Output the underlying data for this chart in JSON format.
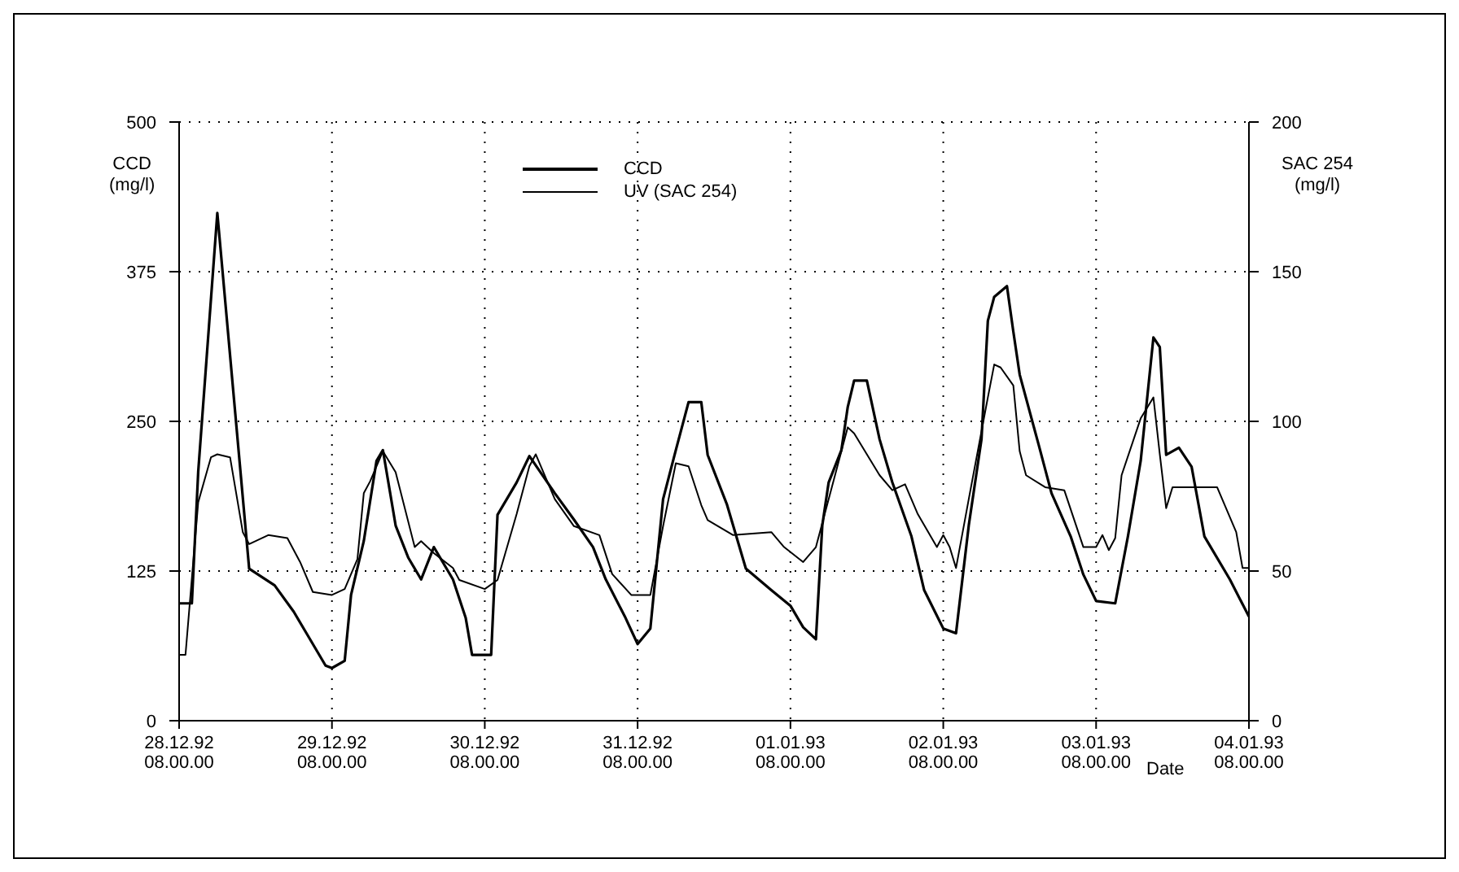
{
  "chart_data": {
    "type": "line",
    "xlabel": "Date",
    "ylabel": "CCD\n(mg/l)",
    "y2label": "SAC 254\n(mg/l)",
    "xlim": [
      "1992-12-28T08:00",
      "1993-01-04T08:00"
    ],
    "xticks": [
      {
        "value": "1992-12-28T08:00",
        "label": "28.12.92\n08.00.00"
      },
      {
        "value": "1992-12-29T08:00",
        "label": "29.12.92\n08.00.00"
      },
      {
        "value": "1992-12-30T08:00",
        "label": "30.12.92\n08.00.00"
      },
      {
        "value": "1992-12-31T08:00",
        "label": "31.12.92\n08.00.00"
      },
      {
        "value": "1993-01-01T08:00",
        "label": "01.01.93\n08.00.00"
      },
      {
        "value": "1993-01-02T08:00",
        "label": "02.01.93\n08.00.00"
      },
      {
        "value": "1993-01-03T08:00",
        "label": "03.01.93\n08.00.00"
      },
      {
        "value": "1993-01-04T08:00",
        "label": "04.01.93\n08.00.00"
      }
    ],
    "ylim": [
      0,
      500
    ],
    "yticks": [
      0,
      125,
      250,
      375,
      500
    ],
    "y2lim": [
      0,
      200
    ],
    "y2ticks": [
      0,
      50,
      100,
      150,
      200
    ],
    "grid": true,
    "legend": "top",
    "marker": "none",
    "series": [
      {
        "name": "CCD",
        "color": "#000000",
        "x": [
          "1992-12-28T08:00",
          "1992-12-28T10:00",
          "1992-12-28T11:00",
          "1992-12-28T14:00",
          "1992-12-28T19:00",
          "1992-12-28T23:00",
          "1992-12-29T02:00",
          "1992-12-29T04:00",
          "1992-12-29T07:00",
          "1992-12-29T08:00",
          "1992-12-29T10:00",
          "1992-12-29T11:00",
          "1992-12-29T13:00",
          "1992-12-29T15:00",
          "1992-12-29T16:00",
          "1992-12-29T18:00",
          "1992-12-29T20:00",
          "1992-12-29T22:00",
          "1992-12-30T00:00",
          "1992-12-30T03:00",
          "1992-12-30T05:00",
          "1992-12-30T06:00",
          "1992-12-30T09:00",
          "1992-12-30T10:00",
          "1992-12-30T13:00",
          "1992-12-30T15:00",
          "1992-12-30T19:00",
          "1992-12-30T22:00",
          "1992-12-31T01:00",
          "1992-12-31T03:00",
          "1992-12-31T06:00",
          "1992-12-31T08:00",
          "1992-12-31T10:00",
          "1992-12-31T12:00",
          "1992-12-31T14:00",
          "1992-12-31T16:00",
          "1992-12-31T18:00",
          "1992-12-31T19:00",
          "1992-12-31T22:00",
          "1993-01-01T01:00",
          "1993-01-01T05:00",
          "1993-01-01T08:00",
          "1993-01-01T10:00",
          "1993-01-01T12:00",
          "1993-01-01T13:00",
          "1993-01-01T14:00",
          "1993-01-01T16:00",
          "1993-01-01T17:00",
          "1993-01-01T18:00",
          "1993-01-01T20:00",
          "1993-01-01T22:00",
          "1993-01-02T00:00",
          "1993-01-02T03:00",
          "1993-01-02T05:00",
          "1993-01-02T08:00",
          "1993-01-02T10:00",
          "1993-01-02T11:00",
          "1993-01-02T12:00",
          "1993-01-02T14:00",
          "1993-01-02T15:00",
          "1993-01-02T16:00",
          "1993-01-02T18:00",
          "1993-01-02T19:00",
          "1993-01-02T20:00",
          "1993-01-02T23:00",
          "1993-01-03T01:00",
          "1993-01-03T04:00",
          "1993-01-03T06:00",
          "1993-01-03T08:00",
          "1993-01-03T11:00",
          "1993-01-03T13:00",
          "1993-01-03T15:00",
          "1993-01-03T17:00",
          "1993-01-03T18:00",
          "1993-01-03T19:00",
          "1993-01-03T21:00",
          "1993-01-03T23:00",
          "1993-01-04T01:00",
          "1993-01-04T05:00",
          "1993-01-04T08:00"
        ],
        "values": [
          98,
          98,
          208,
          424,
          127,
          113,
          91,
          73,
          46,
          44,
          50,
          105,
          150,
          217,
          226,
          163,
          136,
          118,
          145,
          118,
          86,
          55,
          55,
          172,
          199,
          221,
          190,
          168,
          145,
          118,
          87,
          64,
          77,
          185,
          226,
          266,
          266,
          222,
          181,
          127,
          109,
          96,
          78,
          68,
          163,
          199,
          226,
          262,
          284,
          284,
          235,
          199,
          154,
          109,
          77,
          73,
          118,
          163,
          235,
          334,
          354,
          363,
          325,
          289,
          230,
          190,
          154,
          122,
          100,
          98,
          154,
          217,
          320,
          312,
          222,
          228,
          212,
          154,
          118,
          87
        ]
      },
      {
        "name": "UV (SAC 254)",
        "color": "#000000",
        "axis": "y2",
        "x": [
          "1992-12-28T08:00",
          "1992-12-28T09:00",
          "1992-12-28T11:00",
          "1992-12-28T13:00",
          "1992-12-28T14:00",
          "1992-12-28T16:00",
          "1992-12-28T18:00",
          "1992-12-28T19:00",
          "1992-12-28T22:00",
          "1992-12-29T01:00",
          "1992-12-29T03:00",
          "1992-12-29T05:00",
          "1992-12-29T08:00",
          "1992-12-29T10:00",
          "1992-12-29T12:00",
          "1992-12-29T13:00",
          "1992-12-29T14:00",
          "1992-12-29T16:00",
          "1992-12-29T18:00",
          "1992-12-29T21:00",
          "1992-12-29T22:00",
          "1992-12-30T00:00",
          "1992-12-30T03:00",
          "1992-12-30T04:00",
          "1992-12-30T08:00",
          "1992-12-30T10:00",
          "1992-12-30T13:00",
          "1992-12-30T15:00",
          "1992-12-30T16:00",
          "1992-12-30T19:00",
          "1992-12-30T22:00",
          "1992-12-31T02:00",
          "1992-12-31T04:00",
          "1992-12-31T07:00",
          "1992-12-31T10:00",
          "1992-12-31T12:00",
          "1992-12-31T14:00",
          "1992-12-31T16:00",
          "1992-12-31T18:00",
          "1992-12-31T19:00",
          "1992-12-31T23:00",
          "1993-01-01T05:00",
          "1993-01-01T07:00",
          "1993-01-01T10:00",
          "1993-01-01T12:00",
          "1993-01-01T15:00",
          "1993-01-01T17:00",
          "1993-01-01T18:00",
          "1993-01-01T22:00",
          "1993-01-02T00:00",
          "1993-01-02T02:00",
          "1993-01-02T04:00",
          "1993-01-02T07:00",
          "1993-01-02T08:00",
          "1993-01-02T09:00",
          "1993-01-02T10:00",
          "1993-01-02T12:00",
          "1993-01-02T15:00",
          "1993-01-02T16:00",
          "1993-01-02T17:00",
          "1993-01-02T19:00",
          "1993-01-02T20:00",
          "1993-01-02T21:00",
          "1993-01-03T00:00",
          "1993-01-03T03:00",
          "1993-01-03T06:00",
          "1993-01-03T08:00",
          "1993-01-03T09:00",
          "1993-01-03T10:00",
          "1993-01-03T11:00",
          "1993-01-03T12:00",
          "1993-01-03T15:00",
          "1993-01-03T17:00",
          "1993-01-03T18:00",
          "1993-01-03T19:00",
          "1993-01-03T20:00",
          "1993-01-04T03:00",
          "1993-01-04T06:00",
          "1993-01-04T07:00",
          "1993-01-04T08:00"
        ],
        "values": [
          22,
          22,
          73,
          88,
          89,
          88,
          63,
          59,
          62,
          61,
          53,
          43,
          42,
          44,
          54,
          76,
          80,
          90,
          83,
          58,
          60,
          56,
          51,
          47,
          44,
          47,
          69,
          85,
          89,
          74,
          65,
          62,
          49,
          42,
          42,
          65,
          86,
          85,
          72,
          67,
          62,
          63,
          58,
          53,
          58,
          82,
          98,
          96,
          82,
          77,
          79,
          69,
          58,
          62,
          58,
          51,
          74,
          108,
          119,
          118,
          112,
          90,
          82,
          78,
          77,
          58,
          58,
          62,
          57,
          61,
          82,
          101,
          108,
          89,
          71,
          78,
          78,
          63,
          51,
          51
        ]
      }
    ]
  }
}
